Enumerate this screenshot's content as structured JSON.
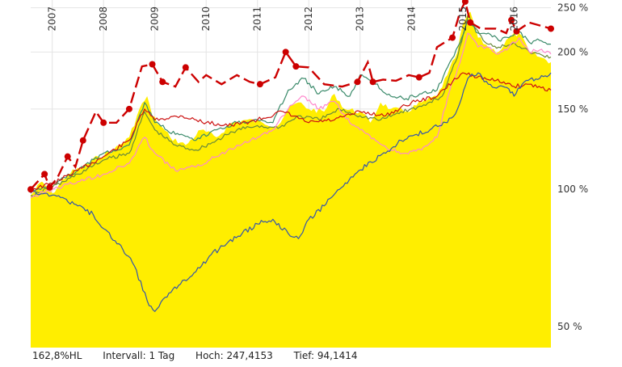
{
  "footer": {
    "ratio": "162,8%HL",
    "interval": "Intervall: 1 Tag",
    "high": "Hoch: 247,4153",
    "low": "Tief: 94,1414"
  },
  "colors": {
    "fill": "#ffee00",
    "dashed": "#cc0000",
    "red_line": "#cc1111",
    "green": "#3a8a6a",
    "pink": "#ff88cc",
    "blue": "#3355aa",
    "olive": "#6a8a3a",
    "grid": "#e4e4e4"
  },
  "chart_data": {
    "type": "line",
    "x_range": [
      "2006-06",
      "2016-10"
    ],
    "yscale": "log",
    "ylim": [
      45,
      260
    ],
    "y_ticks": [
      {
        "value": 50,
        "label": "50 %"
      },
      {
        "value": 100,
        "label": "100 %"
      },
      {
        "value": 150,
        "label": "150 %"
      },
      {
        "value": 200,
        "label": "200 %"
      },
      {
        "value": 250,
        "label": "250 %"
      }
    ],
    "x_ticks": [
      {
        "value": 2007.0,
        "label": "2007"
      },
      {
        "value": 2008.0,
        "label": "2008"
      },
      {
        "value": 2009.0,
        "label": "2009"
      },
      {
        "value": 2010.0,
        "label": "2010"
      },
      {
        "value": 2011.0,
        "label": "2011"
      },
      {
        "value": 2012.0,
        "label": "2012"
      },
      {
        "value": 2013.0,
        "label": "2013"
      },
      {
        "value": 2014.0,
        "label": "2014"
      },
      {
        "value": 2015.0,
        "label": "2015"
      },
      {
        "value": 2016.0,
        "label": "2016"
      }
    ],
    "grid": true,
    "series": [
      {
        "key": "area",
        "style": "area",
        "x": [
          2006.58,
          2006.8,
          2007.0,
          2007.3,
          2007.6,
          2007.9,
          2008.2,
          2008.5,
          2008.7,
          2008.85,
          2008.95,
          2009.1,
          2009.3,
          2009.6,
          2009.9,
          2010.2,
          2010.5,
          2010.8,
          2011.1,
          2011.4,
          2011.6,
          2011.8,
          2012.0,
          2012.3,
          2012.5,
          2012.7,
          2013.0,
          2013.2,
          2013.4,
          2013.6,
          2013.9,
          2014.2,
          2014.5,
          2014.7,
          2014.9,
          2015.0,
          2015.15,
          2015.3,
          2015.5,
          2015.7,
          2015.9,
          2016.1,
          2016.3,
          2016.5,
          2016.72
        ],
        "y": [
          97,
          104,
          98,
          108,
          112,
          118,
          122,
          130,
          150,
          160,
          145,
          138,
          130,
          125,
          135,
          130,
          140,
          142,
          140,
          138,
          150,
          155,
          150,
          148,
          162,
          150,
          148,
          140,
          155,
          150,
          148,
          155,
          160,
          178,
          200,
          230,
          245,
          215,
          205,
          200,
          215,
          220,
          200,
          195,
          190
        ]
      },
      {
        "key": "dashed",
        "style": "dashed",
        "markers": true,
        "x": [
          2006.58,
          2006.85,
          2006.95,
          2007.1,
          2007.3,
          2007.45,
          2007.6,
          2007.85,
          2008.0,
          2008.25,
          2008.5,
          2008.75,
          2008.95,
          2009.15,
          2009.4,
          2009.6,
          2009.85,
          2010.0,
          2010.3,
          2010.6,
          2010.85,
          2011.05,
          2011.35,
          2011.55,
          2011.75,
          2012.0,
          2012.3,
          2012.65,
          2012.95,
          2013.15,
          2013.25,
          2013.45,
          2013.7,
          2013.95,
          2014.15,
          2014.35,
          2014.5,
          2014.65,
          2014.8,
          2014.95,
          2015.05,
          2015.15,
          2015.35,
          2015.65,
          2015.85,
          2015.95,
          2016.05,
          2016.3,
          2016.72
        ],
        "y": [
          100,
          108,
          101,
          106,
          118,
          112,
          128,
          148,
          140,
          140,
          150,
          186,
          188,
          172,
          168,
          185,
          172,
          178,
          170,
          178,
          172,
          170,
          176,
          200,
          186,
          185,
          170,
          168,
          172,
          190,
          172,
          174,
          173,
          178,
          176,
          180,
          205,
          210,
          215,
          245,
          258,
          232,
          225,
          225,
          220,
          235,
          222,
          232,
          225
        ],
        "marker_idx": [
          0,
          1,
          2,
          4,
          6,
          8,
          10,
          12,
          13,
          15,
          21,
          23,
          24,
          28,
          30,
          34,
          38,
          40,
          41,
          45,
          46,
          48
        ]
      },
      {
        "key": "red_line",
        "style": "line",
        "x": [
          2006.58,
          2007.0,
          2007.5,
          2008.0,
          2008.5,
          2008.8,
          2009.0,
          2009.5,
          2010.0,
          2010.5,
          2011.0,
          2011.5,
          2012.0,
          2012.5,
          2013.0,
          2013.5,
          2014.0,
          2014.5,
          2014.8,
          2015.0,
          2015.2,
          2015.5,
          2015.8,
          2016.0,
          2016.3,
          2016.72
        ],
        "y": [
          100,
          103,
          110,
          118,
          128,
          150,
          142,
          145,
          140,
          138,
          142,
          148,
          140,
          142,
          148,
          145,
          155,
          160,
          172,
          180,
          178,
          174,
          172,
          168,
          170,
          165
        ]
      },
      {
        "key": "green",
        "style": "line",
        "x": [
          2006.58,
          2007.0,
          2007.5,
          2008.0,
          2008.5,
          2008.8,
          2009.0,
          2009.4,
          2009.8,
          2010.2,
          2010.6,
          2011.0,
          2011.3,
          2011.6,
          2011.9,
          2012.2,
          2012.5,
          2012.8,
          2013.0,
          2013.3,
          2013.6,
          2013.9,
          2014.2,
          2014.5,
          2014.75,
          2014.95,
          2015.1,
          2015.3,
          2015.5,
          2015.7,
          2015.9,
          2016.1,
          2016.3,
          2016.5,
          2016.72
        ],
        "y": [
          98,
          103,
          110,
          120,
          125,
          155,
          140,
          132,
          128,
          135,
          140,
          142,
          140,
          165,
          175,
          162,
          168,
          160,
          178,
          170,
          160,
          158,
          162,
          165,
          190,
          210,
          235,
          220,
          220,
          212,
          215,
          222,
          210,
          212,
          208
        ]
      },
      {
        "key": "pink",
        "style": "line",
        "x": [
          2006.58,
          2007.0,
          2007.5,
          2008.0,
          2008.5,
          2008.8,
          2009.0,
          2009.4,
          2009.8,
          2010.2,
          2010.6,
          2011.0,
          2011.3,
          2011.6,
          2011.9,
          2012.2,
          2012.5,
          2012.8,
          2013.0,
          2013.3,
          2013.6,
          2013.9,
          2014.2,
          2014.5,
          2014.75,
          2014.95,
          2015.1,
          2015.3,
          2015.5,
          2015.7,
          2015.9,
          2016.1,
          2016.3,
          2016.5,
          2016.72
        ],
        "y": [
          96,
          100,
          104,
          108,
          114,
          130,
          120,
          110,
          112,
          118,
          125,
          130,
          135,
          150,
          160,
          150,
          156,
          140,
          135,
          128,
          122,
          120,
          122,
          130,
          165,
          190,
          220,
          205,
          205,
          198,
          205,
          215,
          200,
          202,
          198
        ]
      },
      {
        "key": "olive",
        "style": "line",
        "x": [
          2006.58,
          2007.0,
          2007.5,
          2008.0,
          2008.5,
          2008.8,
          2009.0,
          2009.4,
          2009.8,
          2010.2,
          2010.6,
          2011.0,
          2011.4,
          2011.8,
          2012.2,
          2012.6,
          2013.0,
          2013.4,
          2013.8,
          2014.2,
          2014.6,
          2014.9,
          2015.1,
          2015.4,
          2015.7,
          2016.0,
          2016.3,
          2016.72
        ],
        "y": [
          97,
          101,
          108,
          116,
          120,
          148,
          135,
          125,
          122,
          128,
          135,
          138,
          136,
          145,
          142,
          150,
          145,
          142,
          148,
          152,
          160,
          195,
          240,
          212,
          205,
          210,
          200,
          195
        ]
      },
      {
        "key": "blue",
        "style": "line",
        "x": [
          2006.58,
          2006.9,
          2007.2,
          2007.5,
          2007.8,
          2008.0,
          2008.3,
          2008.6,
          2008.85,
          2009.0,
          2009.2,
          2009.5,
          2009.8,
          2010.1,
          2010.4,
          2010.7,
          2011.0,
          2011.3,
          2011.6,
          2011.8,
          2012.0,
          2012.3,
          2012.6,
          2012.9,
          2013.2,
          2013.5,
          2013.8,
          2014.1,
          2014.4,
          2014.7,
          2014.9,
          2015.1,
          2015.3,
          2015.5,
          2015.7,
          2015.9,
          2016.0,
          2016.2,
          2016.5,
          2016.72
        ],
        "y": [
          99,
          98,
          96,
          92,
          88,
          82,
          76,
          68,
          57,
          54,
          58,
          62,
          66,
          72,
          76,
          80,
          84,
          86,
          80,
          78,
          86,
          92,
          100,
          108,
          115,
          120,
          128,
          132,
          136,
          140,
          150,
          175,
          180,
          170,
          168,
          166,
          160,
          172,
          175,
          180
        ]
      }
    ]
  }
}
